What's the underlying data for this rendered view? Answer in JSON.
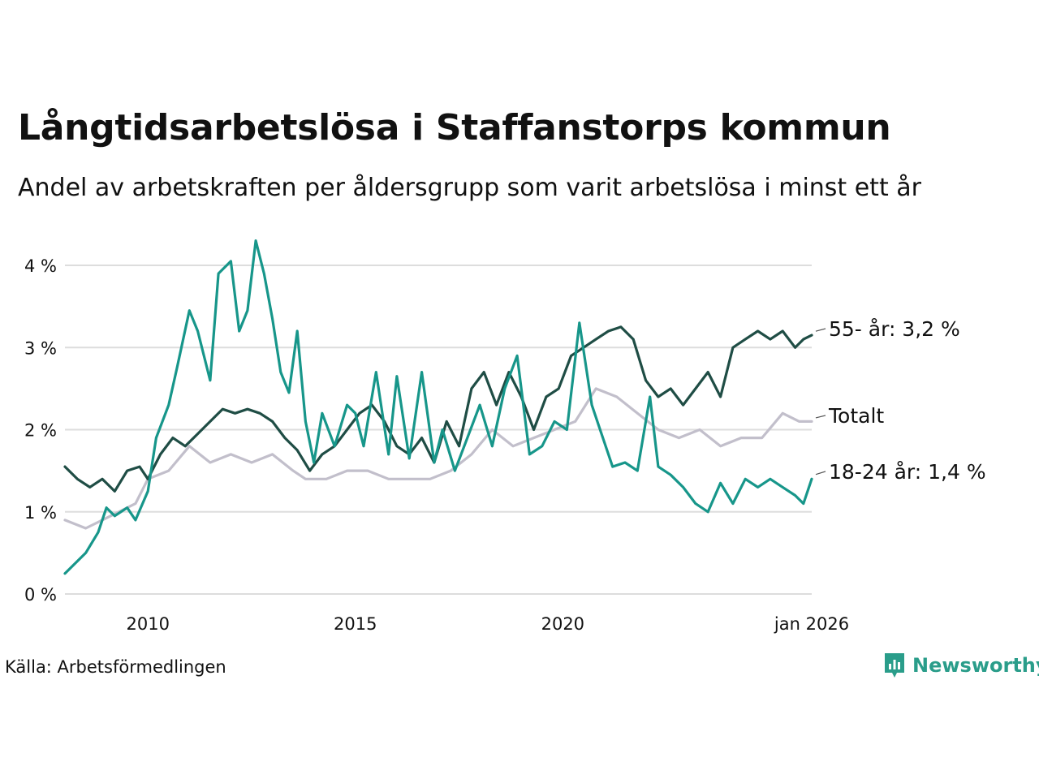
{
  "title": "Långtidsarbetslösa i Staffanstorps kommun",
  "subtitle": "Andel av arbetskraften per åldersgrupp som varit arbetslösa i minst ett år",
  "source": "Källa: Arbetsförmedlingen",
  "brand": "Newsworthy",
  "colors": {
    "55": "#1f4d45",
    "total": "#c2bfcb",
    "1824": "#17968a",
    "grid": "#dddddd",
    "brand": "#2a9d8a"
  },
  "chart_data": {
    "type": "line",
    "title": "Långtidsarbetslösa i Staffanstorps kommun",
    "xlabel": "",
    "ylabel": "",
    "ylim": [
      0,
      4.3
    ],
    "xlim": [
      2008.0,
      2026.0
    ],
    "yticks": [
      {
        "value": 0,
        "label": "0 %"
      },
      {
        "value": 1,
        "label": "1 %"
      },
      {
        "value": 2,
        "label": "2 %"
      },
      {
        "value": 3,
        "label": "3 %"
      },
      {
        "value": 4,
        "label": "4 %"
      }
    ],
    "xticks": [
      {
        "value": 2010,
        "label": "2010"
      },
      {
        "value": 2015,
        "label": "2015"
      },
      {
        "value": 2020,
        "label": "2020"
      },
      {
        "value": 2026,
        "label": "jan 2026"
      }
    ],
    "grid": true,
    "series": [
      {
        "key": "total",
        "name": "Totalt",
        "end_label": "Totalt",
        "x": [
          2008.0,
          2008.5,
          2008.9,
          2009.3,
          2009.7,
          2010.0,
          2010.5,
          2011.0,
          2011.5,
          2012.0,
          2012.5,
          2013.0,
          2013.5,
          2013.8,
          2014.3,
          2014.8,
          2015.3,
          2015.8,
          2016.3,
          2016.8,
          2017.3,
          2017.8,
          2018.3,
          2018.8,
          2019.3,
          2019.8,
          2020.3,
          2020.8,
          2021.3,
          2021.8,
          2022.3,
          2022.8,
          2023.3,
          2023.8,
          2024.3,
          2024.8,
          2025.3,
          2025.7,
          2026.0
        ],
        "values": [
          0.9,
          0.8,
          0.9,
          1.0,
          1.1,
          1.4,
          1.5,
          1.8,
          1.6,
          1.7,
          1.6,
          1.7,
          1.5,
          1.4,
          1.4,
          1.5,
          1.5,
          1.4,
          1.4,
          1.4,
          1.5,
          1.7,
          2.0,
          1.8,
          1.9,
          2.0,
          2.1,
          2.5,
          2.4,
          2.2,
          2.0,
          1.9,
          2.0,
          1.8,
          1.9,
          1.9,
          2.2,
          2.1,
          2.1
        ]
      },
      {
        "key": "55",
        "name": "55- år",
        "end_label": "55- år: 3,2 %",
        "x": [
          2008.0,
          2008.3,
          2008.6,
          2008.9,
          2009.2,
          2009.5,
          2009.8,
          2010.0,
          2010.3,
          2010.6,
          2010.9,
          2011.2,
          2011.5,
          2011.8,
          2012.1,
          2012.4,
          2012.7,
          2013.0,
          2013.3,
          2013.6,
          2013.9,
          2014.2,
          2014.5,
          2014.8,
          2015.1,
          2015.4,
          2015.7,
          2016.0,
          2016.3,
          2016.6,
          2016.9,
          2017.2,
          2017.5,
          2017.8,
          2018.1,
          2018.4,
          2018.7,
          2019.0,
          2019.3,
          2019.6,
          2019.9,
          2020.2,
          2020.5,
          2020.8,
          2021.1,
          2021.4,
          2021.7,
          2022.0,
          2022.3,
          2022.6,
          2022.9,
          2023.2,
          2023.5,
          2023.8,
          2024.1,
          2024.4,
          2024.7,
          2025.0,
          2025.3,
          2025.6,
          2025.8,
          2026.0
        ],
        "values": [
          1.55,
          1.4,
          1.3,
          1.4,
          1.25,
          1.5,
          1.55,
          1.4,
          1.7,
          1.9,
          1.8,
          1.95,
          2.1,
          2.25,
          2.2,
          2.25,
          2.2,
          2.1,
          1.9,
          1.75,
          1.5,
          1.7,
          1.8,
          2.0,
          2.2,
          2.3,
          2.1,
          1.8,
          1.7,
          1.9,
          1.6,
          2.1,
          1.8,
          2.5,
          2.7,
          2.3,
          2.7,
          2.4,
          2.0,
          2.4,
          2.5,
          2.9,
          3.0,
          3.1,
          3.2,
          3.25,
          3.1,
          2.6,
          2.4,
          2.5,
          2.3,
          2.5,
          2.7,
          2.4,
          3.0,
          3.1,
          3.2,
          3.1,
          3.2,
          3.0,
          3.1,
          3.15
        ]
      },
      {
        "key": "1824",
        "name": "18-24 år",
        "end_label": "18-24 år: 1,4 %",
        "x": [
          2008.0,
          2008.2,
          2008.5,
          2008.8,
          2009.0,
          2009.2,
          2009.5,
          2009.7,
          2010.0,
          2010.2,
          2010.5,
          2010.7,
          2011.0,
          2011.2,
          2011.5,
          2011.7,
          2012.0,
          2012.2,
          2012.4,
          2012.6,
          2012.8,
          2013.0,
          2013.2,
          2013.4,
          2013.6,
          2013.8,
          2014.0,
          2014.2,
          2014.5,
          2014.8,
          2015.0,
          2015.2,
          2015.5,
          2015.8,
          2016.0,
          2016.3,
          2016.6,
          2016.9,
          2017.1,
          2017.4,
          2017.7,
          2018.0,
          2018.3,
          2018.6,
          2018.9,
          2019.2,
          2019.5,
          2019.8,
          2020.1,
          2020.4,
          2020.7,
          2020.9,
          2021.2,
          2021.5,
          2021.8,
          2022.1,
          2022.3,
          2022.6,
          2022.9,
          2023.2,
          2023.5,
          2023.8,
          2024.1,
          2024.4,
          2024.7,
          2025.0,
          2025.3,
          2025.6,
          2025.8,
          2026.0
        ],
        "values": [
          0.25,
          0.35,
          0.5,
          0.75,
          1.05,
          0.95,
          1.05,
          0.9,
          1.25,
          1.9,
          2.3,
          2.75,
          3.45,
          3.2,
          2.6,
          3.9,
          4.05,
          3.2,
          3.45,
          4.3,
          3.9,
          3.35,
          2.7,
          2.45,
          3.2,
          2.1,
          1.6,
          2.2,
          1.8,
          2.3,
          2.2,
          1.8,
          2.7,
          1.7,
          2.65,
          1.65,
          2.7,
          1.6,
          2.0,
          1.5,
          1.9,
          2.3,
          1.8,
          2.5,
          2.9,
          1.7,
          1.8,
          2.1,
          2.0,
          3.3,
          2.3,
          2.0,
          1.55,
          1.6,
          1.5,
          2.4,
          1.55,
          1.45,
          1.3,
          1.1,
          1.0,
          1.35,
          1.1,
          1.4,
          1.3,
          1.4,
          1.3,
          1.2,
          1.1,
          1.4
        ]
      }
    ]
  }
}
